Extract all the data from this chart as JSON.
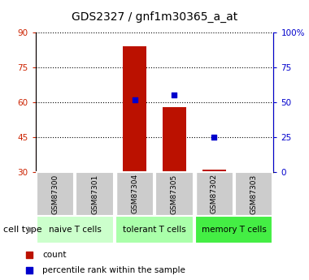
{
  "title": "GDS2327 / gnf1m30365_a_at",
  "samples": [
    "GSM87300",
    "GSM87301",
    "GSM87304",
    "GSM87305",
    "GSM87302",
    "GSM87303"
  ],
  "bar_values": [
    30,
    30,
    84,
    58,
    31,
    30
  ],
  "bar_baseline": 30,
  "dot_values_left": [
    null,
    null,
    61,
    63,
    45,
    null
  ],
  "ylim_left": [
    30,
    90
  ],
  "ylim_right": [
    0,
    100
  ],
  "yticks_left": [
    30,
    45,
    60,
    75,
    90
  ],
  "yticks_right": [
    0,
    25,
    50,
    75,
    100
  ],
  "right_tick_labels": [
    "0",
    "25",
    "50",
    "75",
    "100%"
  ],
  "bar_color": "#bb1100",
  "dot_color": "#0000cc",
  "groups": [
    {
      "label": "naive T cells",
      "start": 0,
      "end": 1,
      "color": "#ccffcc"
    },
    {
      "label": "tolerant T cells",
      "start": 2,
      "end": 3,
      "color": "#aaffaa"
    },
    {
      "label": "memory T cells",
      "start": 4,
      "end": 5,
      "color": "#44ee44"
    }
  ],
  "cell_type_label": "cell type",
  "legend_count": "count",
  "legend_percentile": "percentile rank within the sample",
  "title_fontsize": 10,
  "tick_fontsize": 7.5,
  "sample_fontsize": 6.5,
  "group_fontsize": 7.5,
  "legend_fontsize": 7.5,
  "bar_width": 0.6,
  "header_bg": "#cccccc",
  "left_tick_color": "#cc2200",
  "right_tick_color": "#0000cc",
  "grid_color": "#000000"
}
